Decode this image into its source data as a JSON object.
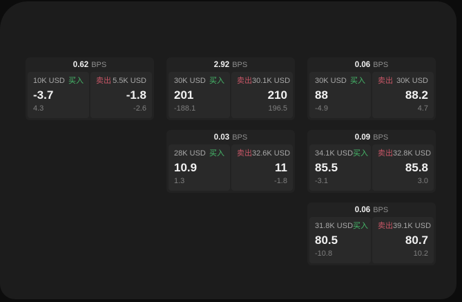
{
  "window": {
    "page_background": "#0c0c0c",
    "window_background": "#1c1c1c",
    "card_background": "#222222",
    "panel_background": "#292929"
  },
  "labels": {
    "bps": "BPS",
    "buy": "买入",
    "sell": "卖出"
  },
  "colors": {
    "buy": "#46b96a",
    "sell": "#c75666"
  },
  "cards": [
    {
      "bps": "0.62",
      "grid": {
        "row": 1,
        "col": 1
      },
      "buy": {
        "amount": "10K USD",
        "value": "-3.7",
        "sub": "4.3"
      },
      "sell": {
        "amount": "5.5K USD",
        "value": "-1.8",
        "sub": "-2.6"
      }
    },
    {
      "bps": "2.92",
      "grid": {
        "row": 1,
        "col": 2
      },
      "buy": {
        "amount": "30K USD",
        "value": "201",
        "sub": "-188.1"
      },
      "sell": {
        "amount": "30.1K USD",
        "value": "210",
        "sub": "196.5"
      }
    },
    {
      "bps": "0.06",
      "grid": {
        "row": 1,
        "col": 3
      },
      "buy": {
        "amount": "30K USD",
        "value": "88",
        "sub": "-4.9"
      },
      "sell": {
        "amount": "30K USD",
        "value": "88.2",
        "sub": "4.7"
      }
    },
    {
      "bps": "0.03",
      "grid": {
        "row": 2,
        "col": 2
      },
      "buy": {
        "amount": "28K USD",
        "value": "10.9",
        "sub": "1.3"
      },
      "sell": {
        "amount": "32.6K USD",
        "value": "11",
        "sub": "-1.8"
      }
    },
    {
      "bps": "0.09",
      "grid": {
        "row": 2,
        "col": 3
      },
      "buy": {
        "amount": "34.1K USD",
        "value": "85.5",
        "sub": "-3.1"
      },
      "sell": {
        "amount": "32.8K USD",
        "value": "85.8",
        "sub": "3.0"
      }
    },
    {
      "bps": "0.06",
      "grid": {
        "row": 3,
        "col": 3
      },
      "buy": {
        "amount": "31.8K USD",
        "value": "80.5",
        "sub": "-10.8"
      },
      "sell": {
        "amount": "39.1K USD",
        "value": "80.7",
        "sub": "10.2"
      }
    }
  ]
}
